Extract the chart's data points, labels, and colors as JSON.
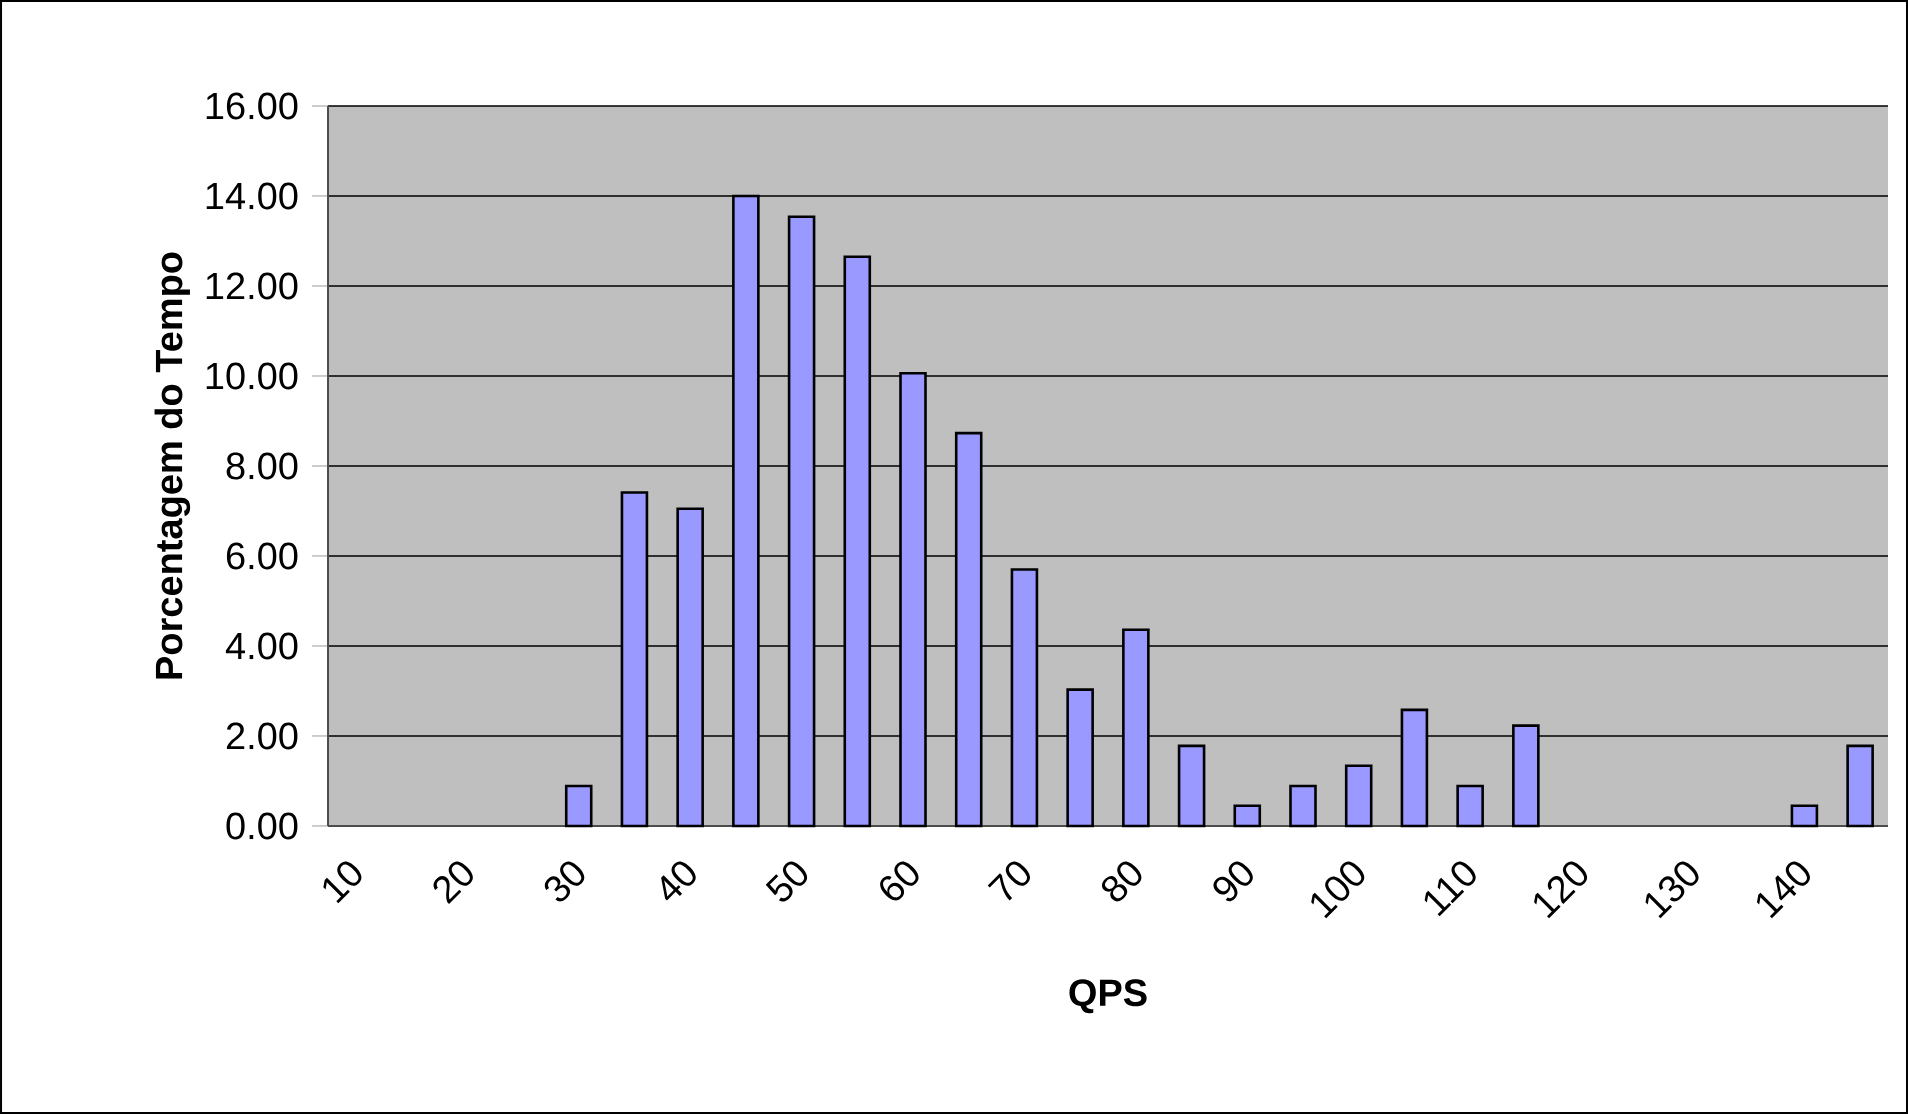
{
  "chart_data": {
    "type": "bar",
    "xlabel": "QPS",
    "ylabel": "Porcentagem do Tempo",
    "categories": [
      "10",
      null,
      "20",
      null,
      "30",
      null,
      "40",
      null,
      "50",
      null,
      "60",
      null,
      "70",
      null,
      "80",
      null,
      "90",
      null,
      "100",
      null,
      "110",
      null,
      "120",
      null,
      "130",
      null,
      "140",
      null
    ],
    "values": [
      null,
      null,
      null,
      null,
      0.89,
      7.41,
      7.05,
      14.0,
      13.54,
      12.65,
      10.06,
      8.73,
      5.7,
      3.03,
      4.36,
      1.78,
      0.45,
      0.89,
      1.34,
      2.58,
      0.89,
      2.23,
      null,
      null,
      null,
      null,
      0.45,
      1.78
    ],
    "color": "#9999ff",
    "ylim": [
      0,
      16
    ],
    "yticks": [
      {
        "value": 0,
        "label": "0.00"
      },
      {
        "value": 2,
        "label": "2.00"
      },
      {
        "value": 4,
        "label": "4.00"
      },
      {
        "value": 6,
        "label": "6.00"
      },
      {
        "value": 8,
        "label": "8.00"
      },
      {
        "value": 10,
        "label": "10.00"
      },
      {
        "value": 12,
        "label": "12.00"
      },
      {
        "value": 14,
        "label": "14.00"
      },
      {
        "value": 16,
        "label": "16.00"
      }
    ],
    "grid": "y"
  }
}
